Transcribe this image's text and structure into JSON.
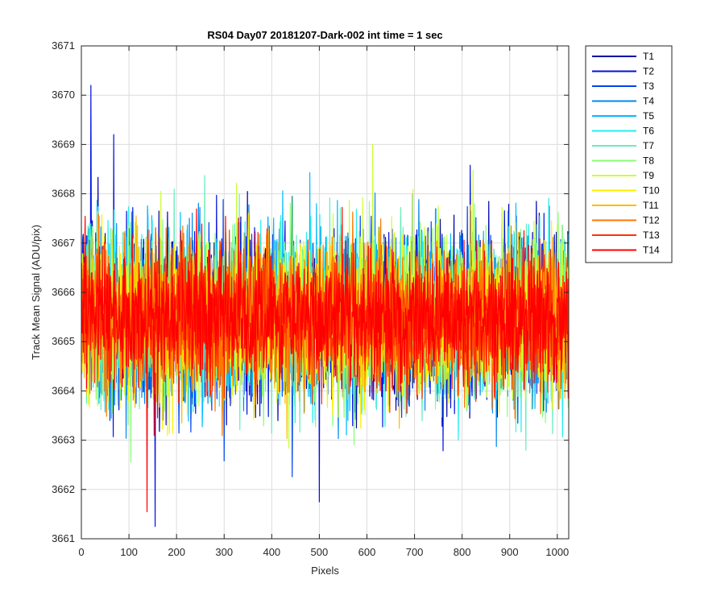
{
  "chart_data": {
    "type": "line",
    "title": "RS04 Day07 20181207-Dark-002 int time = 1 sec",
    "xlabel": "Pixels",
    "ylabel": "Track Mean Signal (ADU/pix)",
    "xlim": [
      0,
      1024
    ],
    "ylim": [
      3661,
      3671
    ],
    "xticks": [
      0,
      100,
      200,
      300,
      400,
      500,
      600,
      700,
      800,
      900,
      1000
    ],
    "yticks": [
      3661,
      3662,
      3663,
      3664,
      3665,
      3666,
      3667,
      3668,
      3669,
      3670,
      3671
    ],
    "grid": true,
    "legend_position": "outside-right-top",
    "series_mean": 3665.5,
    "series_spread": 0.85,
    "series": [
      {
        "name": "T1",
        "color": "#0000aa"
      },
      {
        "name": "T2",
        "color": "#0011dd"
      },
      {
        "name": "T3",
        "color": "#0044ee"
      },
      {
        "name": "T4",
        "color": "#0088ee"
      },
      {
        "name": "T5",
        "color": "#00bbff"
      },
      {
        "name": "T6",
        "color": "#22eeee"
      },
      {
        "name": "T7",
        "color": "#66eebb"
      },
      {
        "name": "T8",
        "color": "#88ff77"
      },
      {
        "name": "T9",
        "color": "#ccff33"
      },
      {
        "name": "T10",
        "color": "#ffee00"
      },
      {
        "name": "T11",
        "color": "#ffbb00"
      },
      {
        "name": "T12",
        "color": "#ff7700"
      },
      {
        "name": "T13",
        "color": "#ff3300"
      },
      {
        "name": "T14",
        "color": "#ff0000"
      }
    ],
    "extremes": [
      {
        "series": "T2",
        "x": 20,
        "y": 3670.2
      },
      {
        "series": "T2",
        "x": 155,
        "y": 3661.25
      },
      {
        "series": "T14",
        "x": 138,
        "y": 3661.55
      },
      {
        "series": "T2",
        "x": 500,
        "y": 3661.75
      },
      {
        "series": "T9",
        "x": 612,
        "y": 3669.0
      },
      {
        "series": "T2",
        "x": 68,
        "y": 3669.2
      }
    ]
  }
}
